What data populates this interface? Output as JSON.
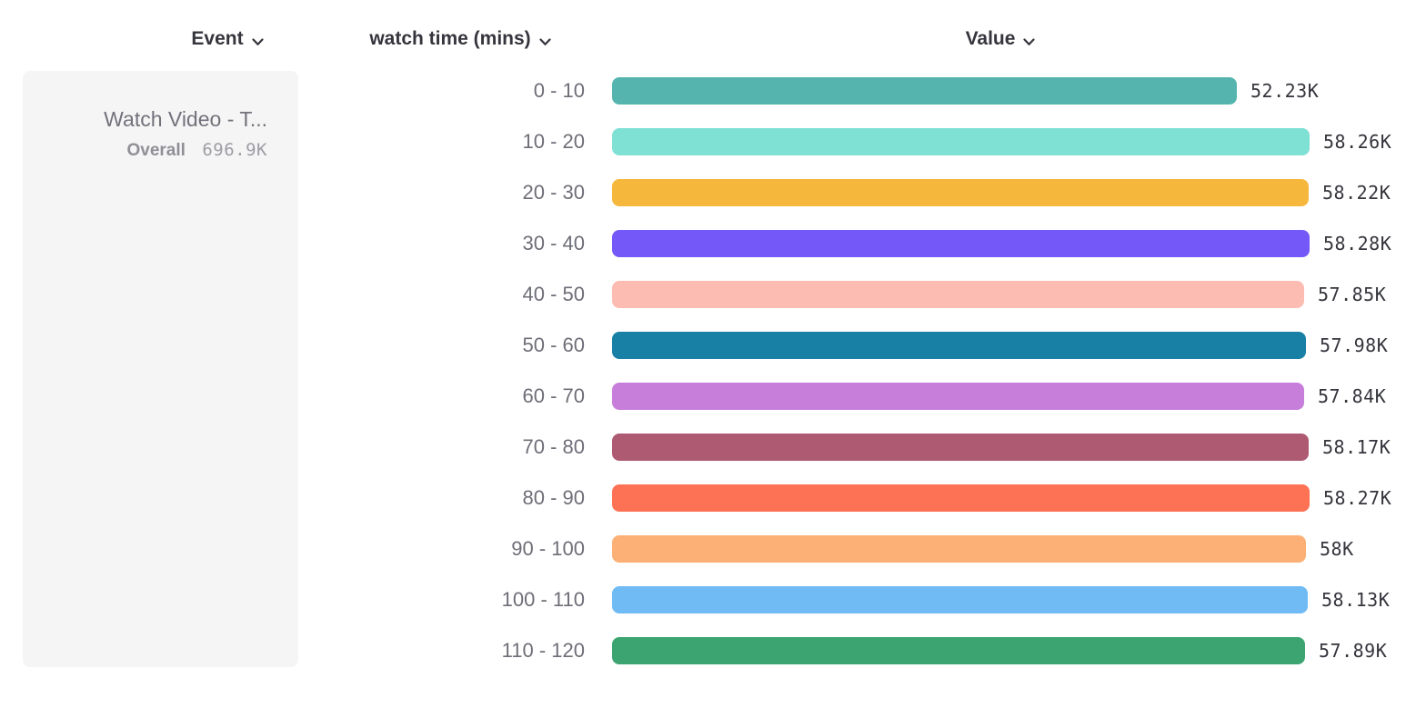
{
  "columns": {
    "event": "Event",
    "breakdown": "watch time (mins)",
    "value": "Value"
  },
  "event_card": {
    "title": "Watch Video - T...",
    "overall_label": "Overall",
    "overall_value": "696.9K"
  },
  "chart_data": {
    "type": "bar",
    "orientation": "horizontal",
    "title": "",
    "xlabel": "Value",
    "ylabel": "watch time (mins)",
    "unit": "K",
    "xlim": [
      0,
      58.28
    ],
    "grid": false,
    "categories": [
      "0 - 10",
      "10 - 20",
      "20 - 30",
      "30 - 40",
      "40 - 50",
      "50 - 60",
      "60 - 70",
      "70 - 80",
      "80 - 90",
      "90 - 100",
      "100 - 110",
      "110 - 120"
    ],
    "values": [
      52.23,
      58.26,
      58.22,
      58.28,
      57.85,
      57.98,
      57.84,
      58.17,
      58.27,
      58.0,
      58.13,
      57.89
    ],
    "value_labels": [
      "52.23K",
      "58.26K",
      "58.22K",
      "58.28K",
      "57.85K",
      "57.98K",
      "57.84K",
      "58.17K",
      "58.27K",
      "58K",
      "58.13K",
      "57.89K"
    ],
    "colors": [
      "#55b5ae",
      "#7fe0d4",
      "#f6b83c",
      "#7458f8",
      "#fcbcb2",
      "#1980a5",
      "#c77edb",
      "#ad5a72",
      "#fd7154",
      "#fcb075",
      "#70bbf4",
      "#3ba471"
    ],
    "overall_total": "696.9K",
    "series_name": "Watch Video - T..."
  }
}
